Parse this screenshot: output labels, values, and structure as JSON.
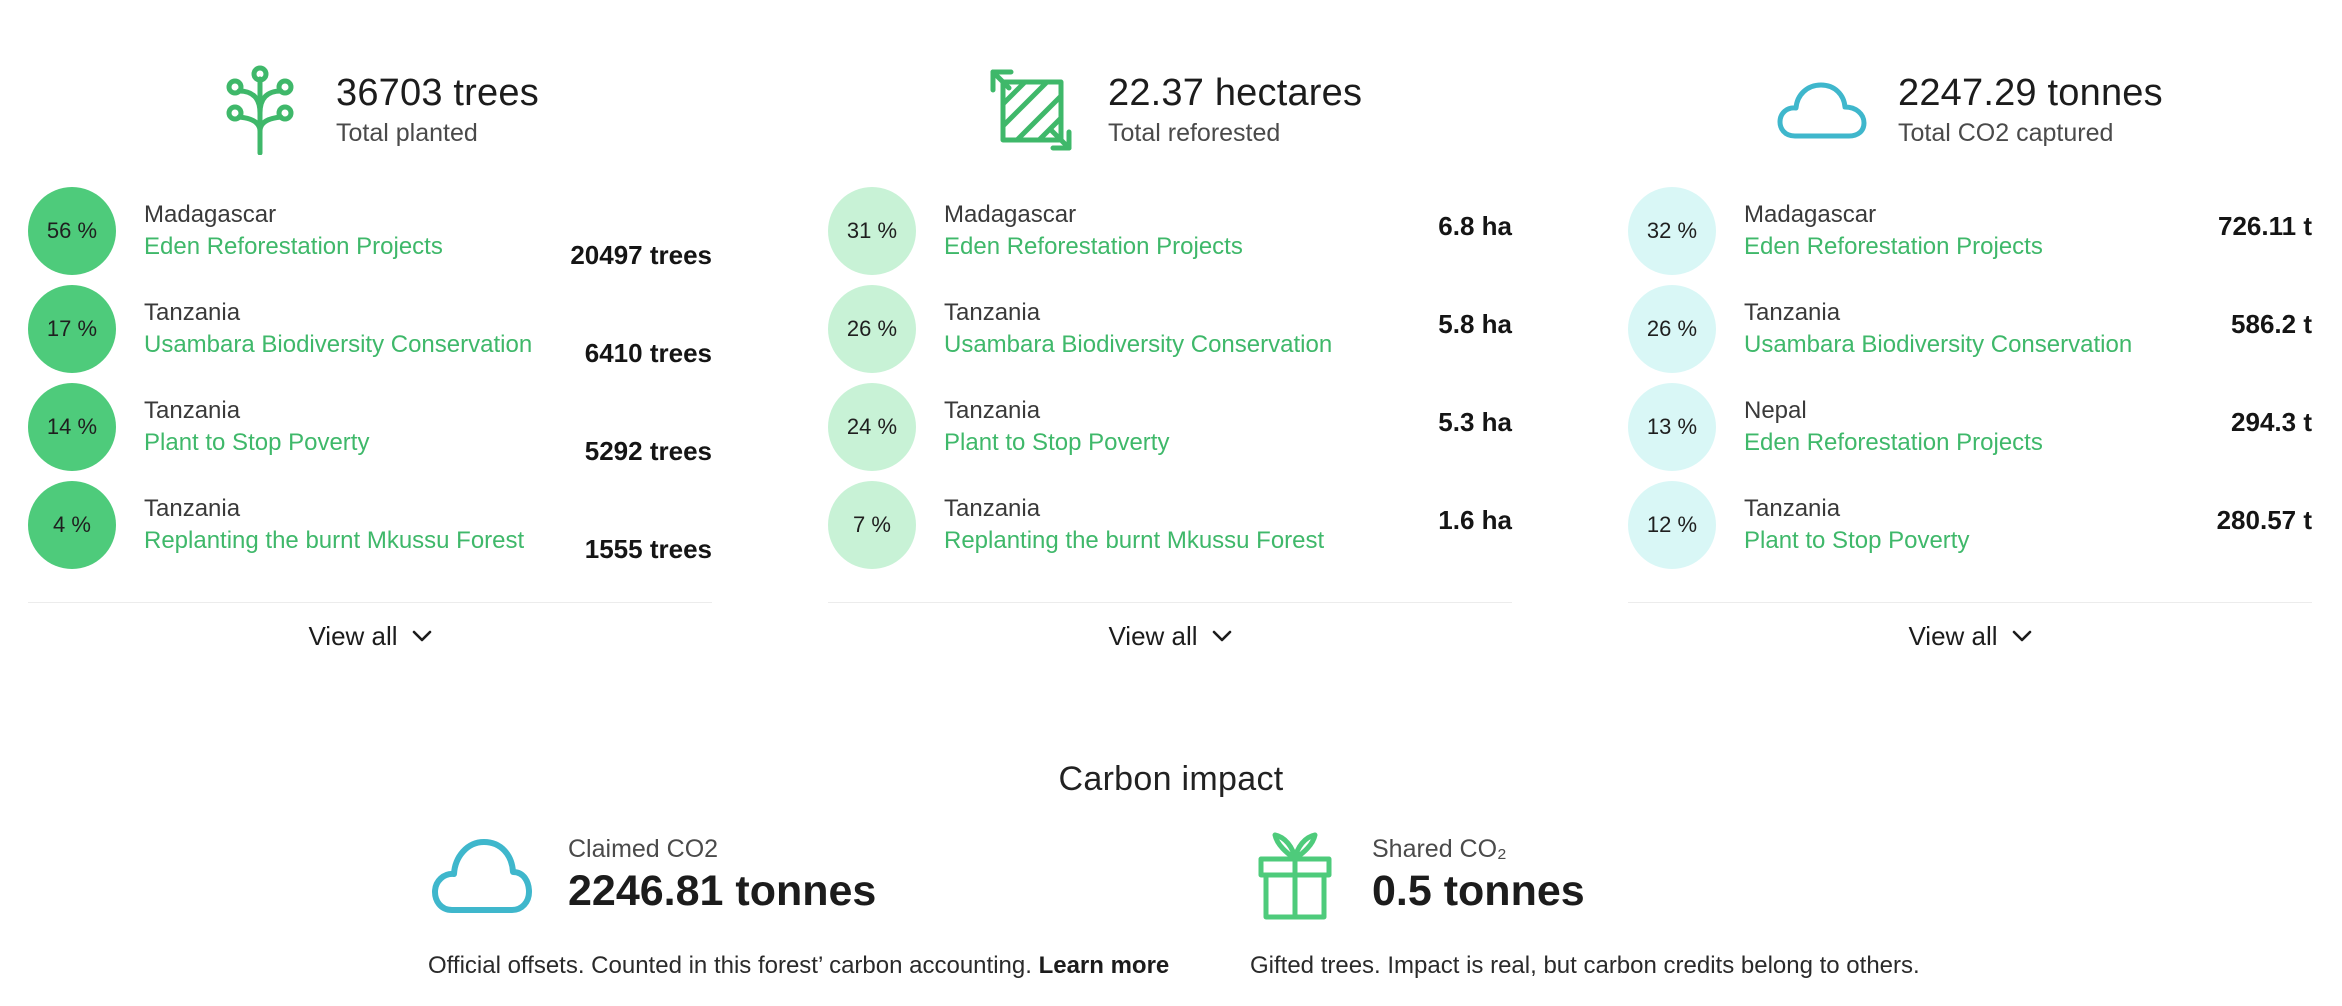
{
  "colors": {
    "green_accent": "#3fb86a",
    "green_strong": "#4ecb7b",
    "green_light": "#c8f2d6",
    "cyan_light": "#d9f7f6",
    "cyan_icon": "#3fb7cc"
  },
  "trees": {
    "icon": "tree-icon",
    "value": "36703 trees",
    "label": "Total planted",
    "rows": [
      {
        "pct": "56 %",
        "country": "Madagascar",
        "project": "Eden Reforestation Projects",
        "value": "20497 trees"
      },
      {
        "pct": "17 %",
        "country": "Tanzania",
        "project": "Usambara Biodiversity Conservation",
        "value": "6410 trees"
      },
      {
        "pct": "14 %",
        "country": "Tanzania",
        "project": "Plant to Stop Poverty",
        "value": "5292 trees"
      },
      {
        "pct": "4 %",
        "country": "Tanzania",
        "project": "Replanting the burnt Mkussu Forest",
        "value": "1555 trees"
      }
    ],
    "view_all": "View all"
  },
  "area": {
    "icon": "area-icon",
    "value": "22.37 hectares",
    "label": "Total reforested",
    "rows": [
      {
        "pct": "31 %",
        "country": "Madagascar",
        "project": "Eden Reforestation Projects",
        "value": "6.8 ha"
      },
      {
        "pct": "26 %",
        "country": "Tanzania",
        "project": "Usambara Biodiversity Conservation",
        "value": "5.8 ha"
      },
      {
        "pct": "24 %",
        "country": "Tanzania",
        "project": "Plant to Stop Poverty",
        "value": "5.3 ha"
      },
      {
        "pct": "7 %",
        "country": "Tanzania",
        "project": "Replanting the burnt Mkussu Forest",
        "value": "1.6 ha"
      }
    ],
    "view_all": "View all"
  },
  "co2": {
    "icon": "cloud-icon",
    "value": "2247.29 tonnes",
    "label": "Total CO2 captured",
    "rows": [
      {
        "pct": "32 %",
        "country": "Madagascar",
        "project": "Eden Reforestation Projects",
        "value": "726.11 t"
      },
      {
        "pct": "26 %",
        "country": "Tanzania",
        "project": "Usambara Biodiversity Conservation",
        "value": "586.2 t"
      },
      {
        "pct": "13 %",
        "country": "Nepal",
        "project": "Eden Reforestation Projects",
        "value": "294.3 t"
      },
      {
        "pct": "12 %",
        "country": "Tanzania",
        "project": "Plant to Stop Poverty",
        "value": "280.57 t"
      }
    ],
    "view_all": "View all"
  },
  "carbon_impact": {
    "title": "Carbon impact",
    "claimed": {
      "icon": "cloud-icon",
      "label": "Claimed CO2",
      "value": "2246.81 tonnes",
      "description": "Official offsets.  Counted in this forest’ carbon accounting.",
      "learn_more": "Learn more"
    },
    "shared": {
      "icon": "gift-icon",
      "label": "Shared CO₂",
      "value": "0.5 tonnes",
      "description": "Gifted trees. Impact is real, but carbon credits belong to others."
    }
  }
}
